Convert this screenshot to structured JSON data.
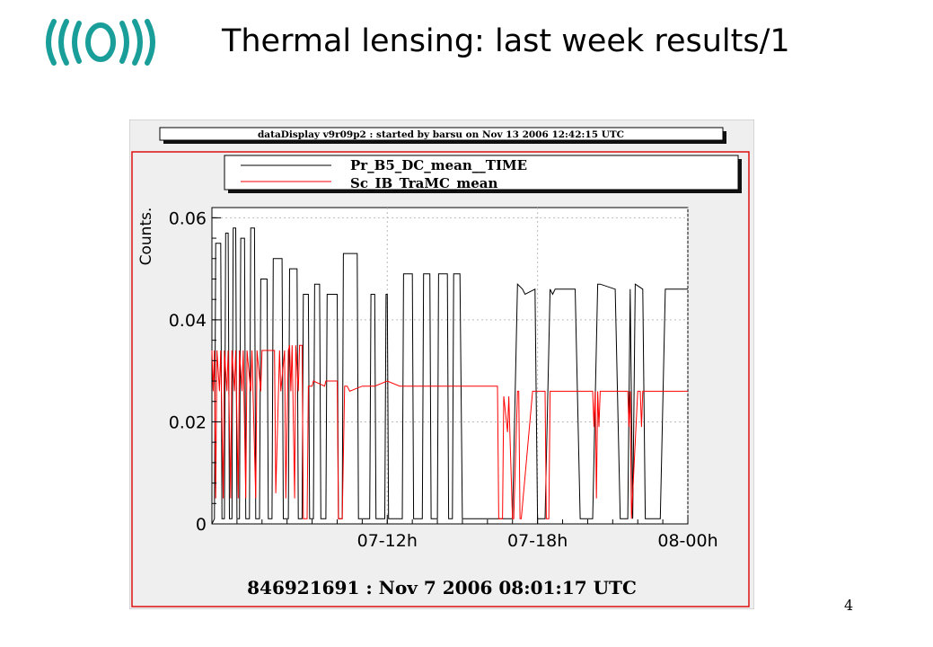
{
  "slide": {
    "title": "Thermal lensing: last week results/1",
    "page_number": "4"
  },
  "colors": {
    "logo": "#1a9e9a",
    "canvas_bg": "#efefef",
    "frame_border": "#dd1111",
    "series_black": "#000000",
    "series_red": "#ff0000"
  },
  "chart_data": {
    "type": "line",
    "canvas_header": "dataDisplay v9r09p2 : started by barsu on Nov 13 2006 12:42:15 UTC",
    "footer": "846921691 : Nov  7 2006 08:01:17 UTC",
    "ylabel": "Counts.",
    "xlabel": "",
    "x_unit": "hours since 07-05h",
    "xlim": [
      0,
      19
    ],
    "ylim": [
      0,
      0.062
    ],
    "y_ticks": [
      {
        "value": 0,
        "label": "0"
      },
      {
        "value": 0.02,
        "label": "0.02"
      },
      {
        "value": 0.04,
        "label": "0.04"
      },
      {
        "value": 0.06,
        "label": "0.06"
      }
    ],
    "x_ticks": [
      {
        "value": 7,
        "label": "07-12h"
      },
      {
        "value": 13,
        "label": "07-18h"
      },
      {
        "value": 19,
        "label": "08-00h"
      }
    ],
    "grid": true,
    "legend_position": "top",
    "series": [
      {
        "name": "Pr_B5_DC_mean__TIME",
        "color": "#000000",
        "x": [
          0,
          0.1,
          0.15,
          0.35,
          0.4,
          0.5,
          0.55,
          0.65,
          0.7,
          0.8,
          0.85,
          0.95,
          1.0,
          1.1,
          1.15,
          1.3,
          1.35,
          1.5,
          1.55,
          1.7,
          1.75,
          1.9,
          1.95,
          2.2,
          2.25,
          2.4,
          2.45,
          2.8,
          2.85,
          3.05,
          3.1,
          3.4,
          3.45,
          3.6,
          3.65,
          3.85,
          3.9,
          4.05,
          4.1,
          4.3,
          4.35,
          4.55,
          4.6,
          5.0,
          5.05,
          5.2,
          5.25,
          5.8,
          5.85,
          6.3,
          6.35,
          6.5,
          6.55,
          6.9,
          6.95,
          7.0,
          7.05,
          7.6,
          7.65,
          8.0,
          8.05,
          8.4,
          8.45,
          8.7,
          8.75,
          9.0,
          9.05,
          9.4,
          9.45,
          9.6,
          9.65,
          9.9,
          10.0,
          10.5,
          10.7,
          11.0,
          11.2,
          12.0,
          12.2,
          12.4,
          12.5,
          12.9,
          13.0,
          13.3,
          13.5,
          13.6,
          13.7,
          14.0,
          14.5,
          14.7,
          15.2,
          15.4,
          15.5,
          16.1,
          16.3,
          16.6,
          16.7,
          16.8,
          16.9,
          17.2,
          17.3,
          17.9,
          18.1,
          18.6,
          18.9,
          19.0
        ],
        "values": [
          0,
          0.001,
          0.055,
          0.055,
          0.001,
          0.001,
          0.057,
          0.057,
          0.001,
          0.001,
          0.058,
          0.058,
          0.001,
          0.001,
          0.056,
          0.056,
          0.001,
          0.001,
          0.058,
          0.058,
          0.001,
          0.001,
          0.048,
          0.048,
          0.001,
          0.001,
          0.052,
          0.052,
          0.001,
          0.001,
          0.05,
          0.05,
          0.001,
          0.001,
          0.045,
          0.045,
          0.001,
          0.001,
          0.047,
          0.047,
          0.001,
          0.001,
          0.045,
          0.045,
          0.001,
          0.001,
          0.053,
          0.053,
          0.001,
          0.001,
          0.045,
          0.045,
          0.001,
          0.001,
          0.045,
          0.045,
          0.001,
          0.001,
          0.049,
          0.049,
          0.001,
          0.001,
          0.049,
          0.049,
          0.001,
          0.001,
          0.049,
          0.049,
          0.001,
          0.001,
          0.049,
          0.049,
          0.001,
          0.001,
          0.001,
          0.001,
          0.001,
          0.001,
          0.047,
          0.046,
          0.045,
          0.046,
          0.001,
          0.001,
          0.046,
          0.045,
          0.046,
          0.046,
          0.046,
          0.001,
          0.001,
          0.047,
          0.047,
          0.046,
          0.001,
          0.001,
          0.046,
          0.001,
          0.047,
          0.046,
          0.001,
          0.001,
          0.046,
          0.046,
          0.046,
          0.046
        ]
      },
      {
        "name": "Sc_IB_TraMC_mean",
        "color": "#ff0000",
        "x": [
          0,
          0.05,
          0.1,
          0.15,
          0.2,
          0.3,
          0.35,
          0.45,
          0.5,
          0.6,
          0.65,
          0.75,
          0.8,
          0.9,
          0.95,
          1.05,
          1.1,
          1.2,
          1.25,
          1.35,
          1.4,
          1.55,
          1.6,
          1.75,
          1.8,
          1.95,
          2.0,
          2.5,
          2.55,
          2.7,
          2.75,
          2.9,
          2.95,
          3.05,
          3.1,
          3.15,
          3.2,
          3.3,
          3.35,
          3.45,
          3.5,
          3.6,
          3.65,
          3.8,
          3.85,
          4.0,
          4.05,
          4.5,
          4.55,
          5.0,
          5.05,
          5.2,
          5.3,
          5.4,
          5.5,
          6.0,
          6.5,
          7.0,
          7.5,
          8.0,
          8.5,
          9.0,
          9.5,
          10.0,
          10.5,
          11.0,
          11.4,
          11.45,
          11.6,
          11.65,
          11.8,
          11.85,
          12.0,
          12.05,
          12.2,
          12.25,
          12.3,
          12.35,
          12.8,
          12.85,
          13.3,
          13.35,
          13.45,
          13.5,
          14.0,
          15.0,
          15.2,
          15.25,
          15.3,
          15.35,
          15.4,
          15.45,
          15.5,
          16.0,
          16.6,
          16.65,
          16.7,
          16.75,
          17.0,
          17.1,
          17.15,
          17.2,
          18.0,
          19.0
        ],
        "values": [
          0.034,
          0.026,
          0.034,
          0.005,
          0.034,
          0.026,
          0.034,
          0.005,
          0.034,
          0.026,
          0.034,
          0.005,
          0.034,
          0.026,
          0.034,
          0.005,
          0.034,
          0.026,
          0.034,
          0.005,
          0.034,
          0.026,
          0.034,
          0.005,
          0.034,
          0.026,
          0.034,
          0.034,
          0.006,
          0.034,
          0.026,
          0.034,
          0.005,
          0.034,
          0.035,
          0.026,
          0.035,
          0.005,
          0.035,
          0.026,
          0.035,
          0.035,
          0.001,
          0.001,
          0.027,
          0.027,
          0.028,
          0.027,
          0.028,
          0.028,
          0.001,
          0.001,
          0.027,
          0.027,
          0.026,
          0.027,
          0.027,
          0.028,
          0.027,
          0.027,
          0.027,
          0.027,
          0.027,
          0.027,
          0.027,
          0.027,
          0.027,
          0.001,
          0.001,
          0.025,
          0.018,
          0.025,
          0.001,
          0.001,
          0.026,
          0.026,
          0.001,
          0.001,
          0.026,
          0.026,
          0.026,
          0.001,
          0.001,
          0.026,
          0.026,
          0.026,
          0.026,
          0.019,
          0.026,
          0.005,
          0.026,
          0.019,
          0.026,
          0.026,
          0.026,
          0.019,
          0.026,
          0.001,
          0.026,
          0.026,
          0.019,
          0.026,
          0.026,
          0.026
        ]
      }
    ]
  }
}
